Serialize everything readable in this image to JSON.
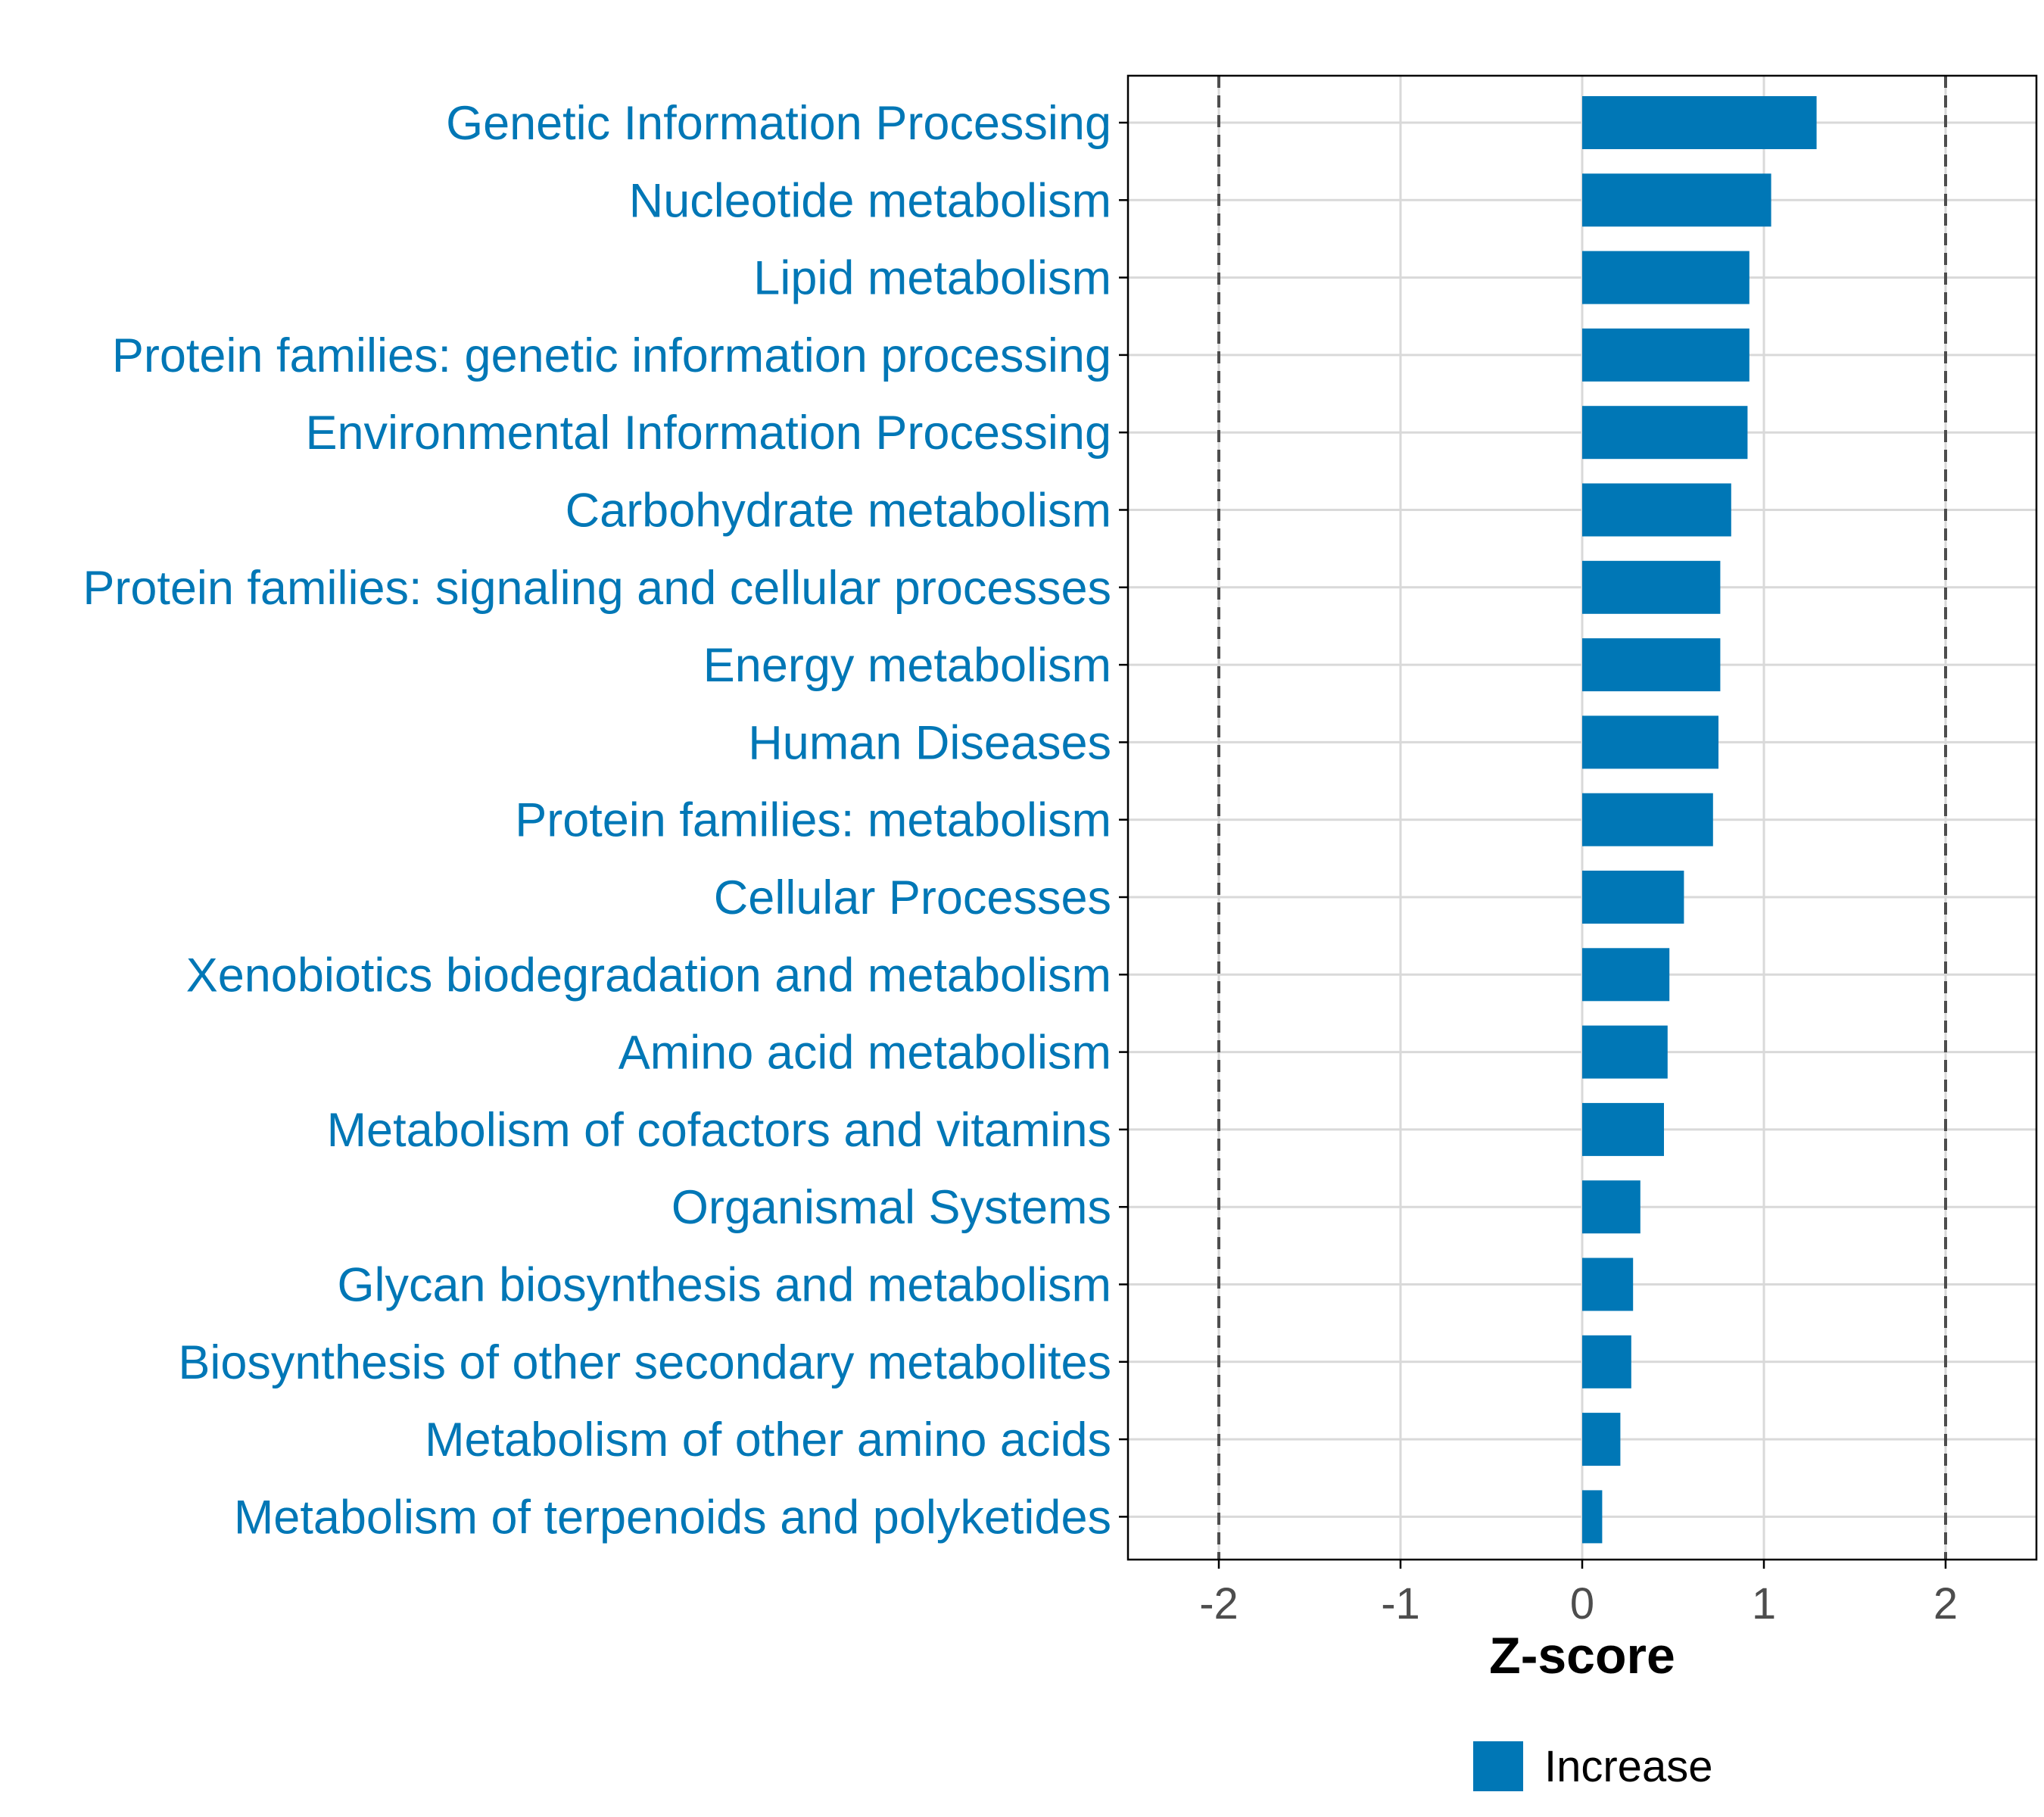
{
  "chart_data": {
    "type": "bar",
    "orientation": "horizontal",
    "title": "",
    "xlabel": "Z-score",
    "ylabel": "",
    "xlim": [
      -2.5,
      2.5
    ],
    "xticks": [
      -2,
      -1,
      0,
      1,
      2
    ],
    "xtick_labels": [
      "-2",
      "-1",
      "0",
      "1",
      "2"
    ],
    "reference_lines": [
      -2,
      2
    ],
    "grid": true,
    "categories": [
      "Genetic Information Processing",
      "Nucleotide metabolism",
      "Lipid metabolism",
      "Protein families: genetic information processing",
      "Environmental Information Processing",
      "Carbohydrate metabolism",
      "Protein families: signaling and cellular processes",
      "Energy metabolism",
      "Human Diseases",
      "Protein families: metabolism",
      "Cellular Processes",
      "Xenobiotics biodegradation and metabolism",
      "Amino acid metabolism",
      "Metabolism of cofactors and vitamins",
      "Organismal Systems",
      "Glycan biosynthesis and metabolism",
      "Biosynthesis of other secondary metabolites",
      "Metabolism of other amino acids",
      "Metabolism of terpenoids and polyketides"
    ],
    "values": [
      1.29,
      1.04,
      0.92,
      0.92,
      0.91,
      0.82,
      0.76,
      0.76,
      0.75,
      0.72,
      0.56,
      0.48,
      0.47,
      0.45,
      0.32,
      0.28,
      0.27,
      0.21,
      0.11
    ],
    "legend": [
      {
        "label": "Increase",
        "color": "#0077b6"
      }
    ],
    "legend_position": "bottom"
  },
  "colors": {
    "bar": "#0077b6",
    "label": "#0077b6",
    "grid": "#d9d9d9",
    "axis": "#000000",
    "reference_line": "#4d4d4d"
  }
}
